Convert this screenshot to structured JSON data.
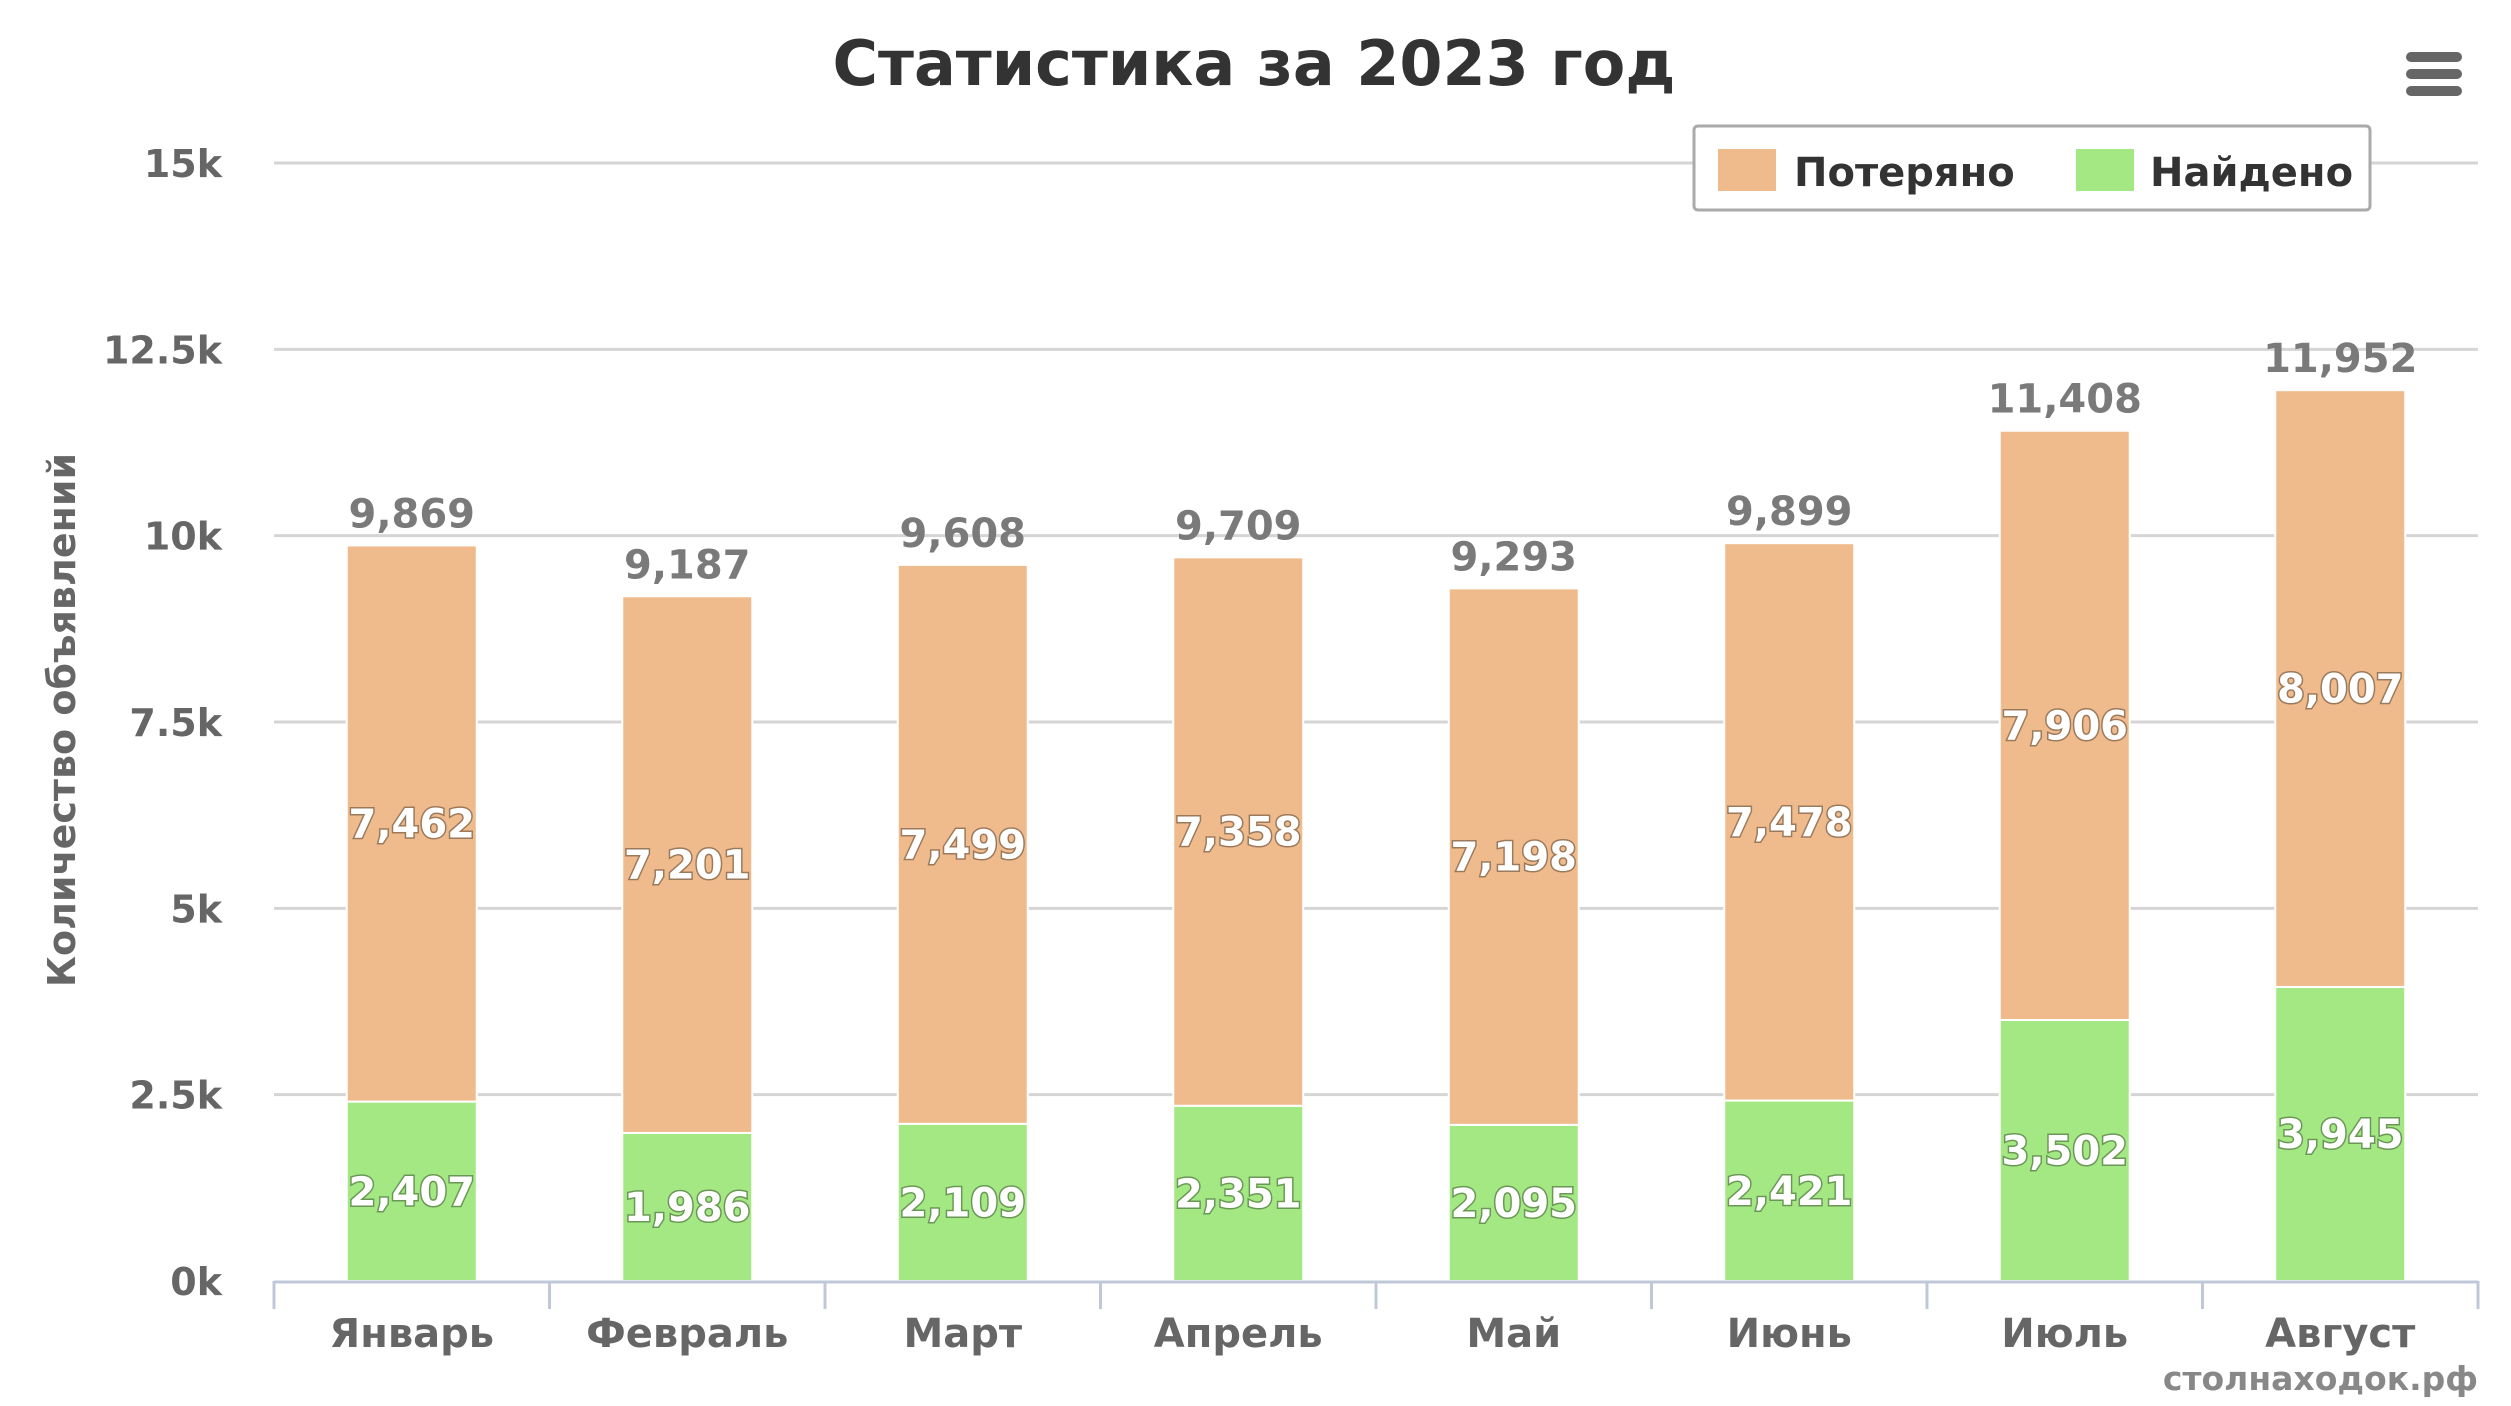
{
  "colors": {
    "lost": "#efbb8c",
    "found": "#a4e884",
    "grid": "#d5d5d5",
    "axis_text": "#666666",
    "title_text": "#333333",
    "data_label_total": "#7a7a7a",
    "data_label_inside": "#ffffff",
    "legend_border": "#aaaaaa"
  },
  "menu": {
    "icon": "hamburger-menu-icon"
  },
  "watermark": "столнаходок.рф",
  "chart_data": {
    "type": "bar",
    "stacked": true,
    "title": "Статистика за 2023 год",
    "ylabel": "Количество объявлений",
    "xlabel": "",
    "categories": [
      "Январь",
      "Февраль",
      "Март",
      "Апрель",
      "Май",
      "Июнь",
      "Июль",
      "Август"
    ],
    "series": [
      {
        "name": "Найдено",
        "color": "#a4e884",
        "values": [
          2407,
          1986,
          2109,
          2351,
          2095,
          2421,
          3502,
          3945
        ],
        "labels": [
          "2,407",
          "1,986",
          "2,109",
          "2,351",
          "2,095",
          "2,421",
          "3,502",
          "3,945"
        ]
      },
      {
        "name": "Потеряно",
        "color": "#efbb8c",
        "values": [
          7462,
          7201,
          7499,
          7358,
          7198,
          7478,
          7906,
          8007
        ],
        "labels": [
          "7,462",
          "7,201",
          "7,499",
          "7,358",
          "7,198",
          "7,478",
          "7,906",
          "8,007"
        ]
      }
    ],
    "totals": [
      9869,
      9187,
      9608,
      9709,
      9293,
      9899,
      11408,
      11952
    ],
    "total_labels": [
      "9,869",
      "9,187",
      "9,608",
      "9,709",
      "9,293",
      "9,899",
      "11,408",
      "11,952"
    ],
    "legend": [
      "Потеряно",
      "Найдено"
    ],
    "legend_position": "top-right",
    "ylim": [
      0,
      15000
    ],
    "yticks": [
      0,
      2500,
      5000,
      7500,
      10000,
      12500,
      15000
    ],
    "ytick_labels": [
      "0k",
      "2.5k",
      "5k",
      "7.5k",
      "10k",
      "12.5k",
      "15k"
    ],
    "grid": true
  }
}
